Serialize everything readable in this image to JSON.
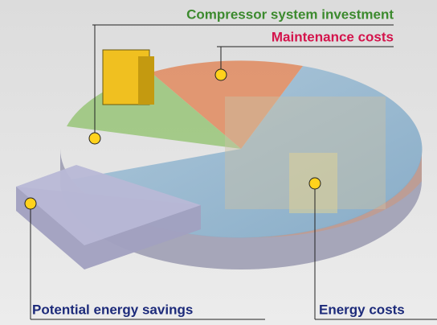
{
  "callouts": {
    "investment": "Compressor system investment",
    "maintenance": "Maintenance costs",
    "savings": "Potential energy savings",
    "energy": "Energy costs"
  }
}
